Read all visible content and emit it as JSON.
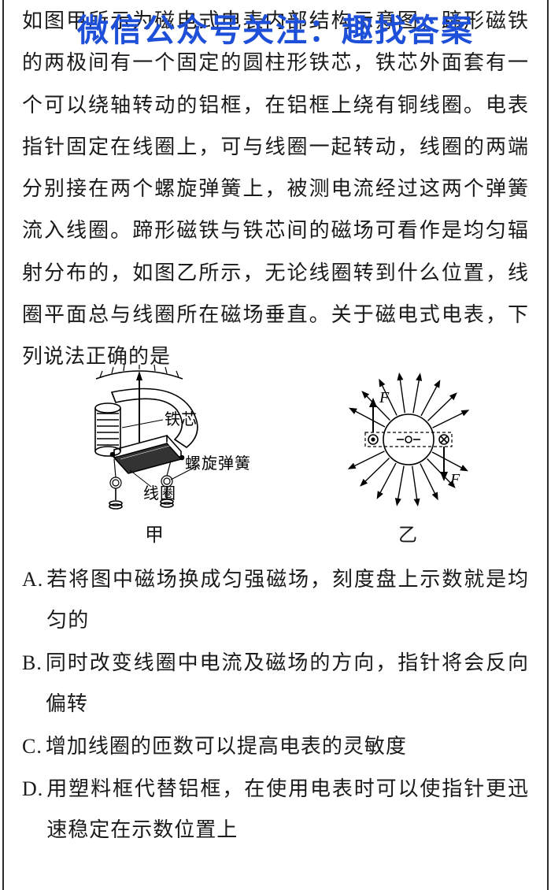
{
  "watermark": "微信公众号关注：趣找答案",
  "question": "如图甲所示为磁电式电表内部结构示意图，蹄形磁铁的两极间有一个固定的圆柱形铁芯，铁芯外面套有一个可以绕轴转动的铝框，在铝框上绕有铜线圈。电表指针固定在线圈上，可与线圈一起转动，线圈的两端分别接在两个螺旋弹簧上，被测电流经过这两个弹簧流入线圈。蹄形磁铁与铁芯间的磁场可看作是均匀辐射分布的，如图乙所示，无论线圈转到什么位置，线圈平面总与线圈所在磁场垂直。关于磁电式电表，下列说法正确的是",
  "labels": {
    "iron_core": "铁芯",
    "spring": "螺旋弹簧",
    "coil": "线圈",
    "force": "F"
  },
  "figure_captions": {
    "left": "甲",
    "right": "乙"
  },
  "options": [
    {
      "label": "A.",
      "text": "若将图中磁场换成匀强磁场，刻度盘上示数就是均匀的"
    },
    {
      "label": "B.",
      "text": "同时改变线圈中电流及磁场的方向，指针将会反向偏转"
    },
    {
      "label": "C.",
      "text": "增加线圈的匝数可以提高电表的灵敏度"
    },
    {
      "label": "D.",
      "text": "用塑料框代替铝框，在使用电表时可以使指针更迅速稳定在示数位置上"
    }
  ],
  "style": {
    "text_color": "#1a1a1a",
    "watermark_color": "#1e4fd8",
    "body_fontsize": 26,
    "line_height": 2.05,
    "stroke": "#000000",
    "stroke_width": 1.6
  }
}
